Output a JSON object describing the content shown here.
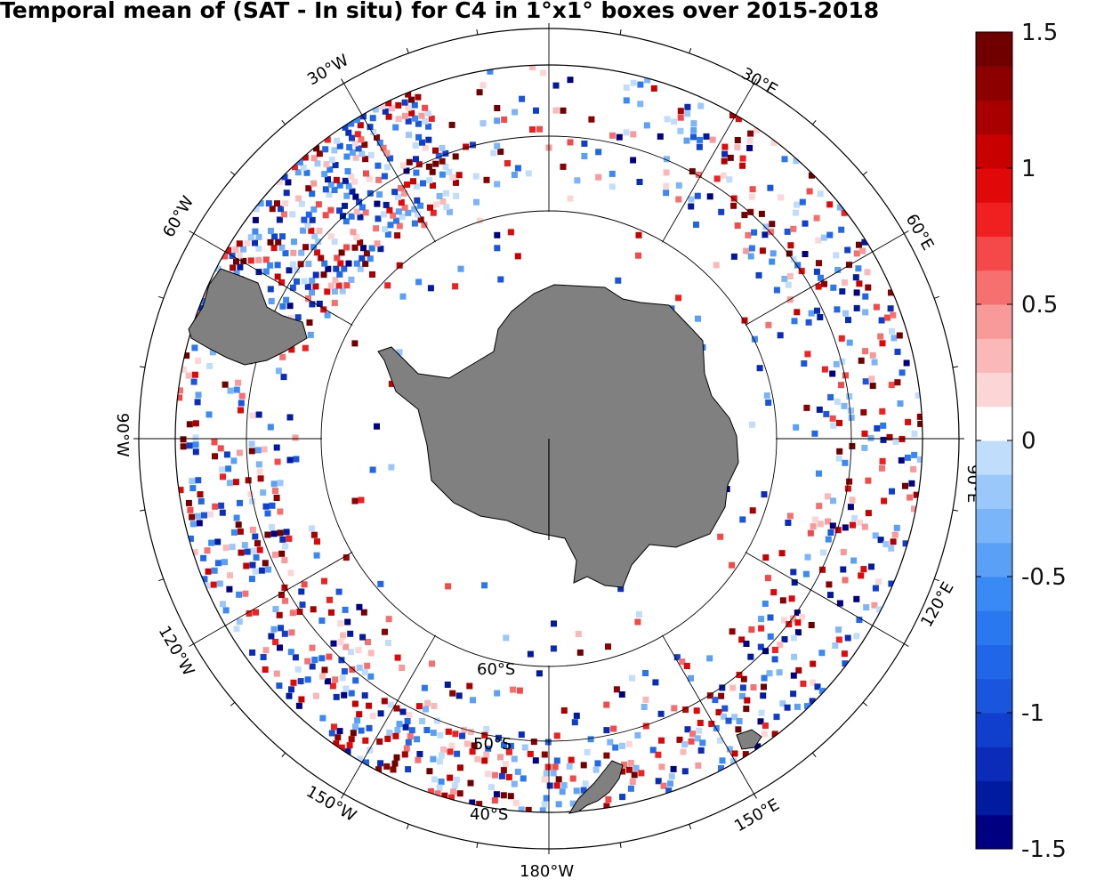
{
  "title": "Temporal mean of (SAT - In situ) for C4 in 1°x1° boxes over 2015-2018",
  "map": {
    "projection": "south polar stereographic",
    "center": "South Pole",
    "land_color": "#808080",
    "longitude_labels": [
      {
        "id": "lon-30w",
        "text": "30°W"
      },
      {
        "id": "lon-30e",
        "text": "30°E"
      },
      {
        "id": "lon-60w",
        "text": "60°W"
      },
      {
        "id": "lon-60e",
        "text": "60°E"
      },
      {
        "id": "lon-90w",
        "text": "90°W"
      },
      {
        "id": "lon-90e",
        "text": "90°E"
      },
      {
        "id": "lon-120w",
        "text": "120°W"
      },
      {
        "id": "lon-120e",
        "text": "120°E"
      },
      {
        "id": "lon-150w",
        "text": "150°W"
      },
      {
        "id": "lon-150e",
        "text": "150°E"
      },
      {
        "id": "lon-180w",
        "text": "180°W"
      }
    ],
    "latitude_labels": [
      {
        "id": "lat-60s",
        "text": "60°S"
      },
      {
        "id": "lat-50s",
        "text": "50°S"
      },
      {
        "id": "lat-40s",
        "text": "40°S"
      }
    ]
  },
  "colorbar": {
    "min": -1.5,
    "max": 1.5,
    "levels": 24,
    "ticks": [
      "1.5",
      "1",
      "0.5",
      "0",
      "-0.5",
      "-1",
      "-1.5"
    ],
    "colors": [
      "#000080",
      "#001aa0",
      "#0a2cb8",
      "#0f3fcc",
      "#1a55dd",
      "#2066e8",
      "#2a78f0",
      "#3a8af5",
      "#5aa0f7",
      "#7ab4f9",
      "#9ac8fb",
      "#c0ddfc",
      "#ffffff",
      "#fcd6d6",
      "#fbb8b8",
      "#f99a9a",
      "#f77070",
      "#f54848",
      "#f02020",
      "#e00808",
      "#c80000",
      "#a80000",
      "#8c0000",
      "#700000"
    ]
  }
}
